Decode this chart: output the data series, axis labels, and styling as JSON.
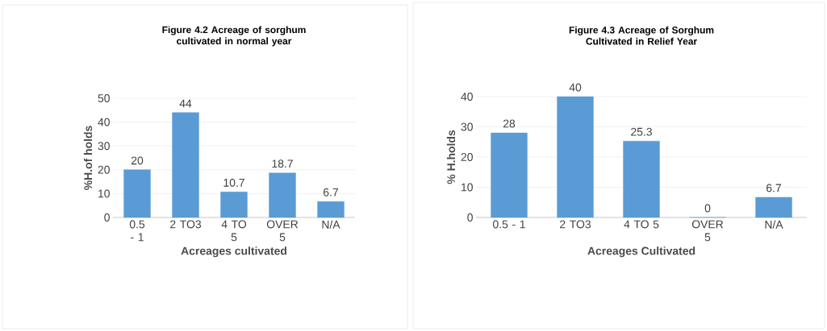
{
  "chart_data": [
    {
      "type": "bar",
      "title": "Figure 4.2 Acreage of sorghum cultivated in normal year",
      "categories": [
        "0.5 - 1",
        "2 TO3",
        "4 TO 5",
        "OVER 5",
        "N/A"
      ],
      "values": [
        20,
        44,
        10.7,
        18.7,
        6.7
      ],
      "color": "#5b9bd5",
      "ylim": [
        0,
        50
      ],
      "yticks": [
        0,
        10,
        20,
        30,
        40,
        50
      ],
      "grid": "y",
      "data_labels": true,
      "xlabel": "Acreages cultivated",
      "ylabel": "%H.of holds"
    },
    {
      "type": "bar",
      "title": "Figure 4.3 Acreage of Sorghum Cultivated in Relief Year",
      "categories": [
        "0.5 - 1",
        "2 TO3",
        "4 TO 5",
        "OVER 5",
        "N/A"
      ],
      "values": [
        28,
        40,
        25.3,
        0,
        6.7
      ],
      "color": "#5b9bd5",
      "ylim": [
        0,
        40
      ],
      "yticks": [
        0,
        10,
        20,
        30,
        40
      ],
      "grid": "y",
      "data_labels": true,
      "xlabel": "Acreages Cultivated",
      "ylabel": "% H.holds"
    }
  ]
}
